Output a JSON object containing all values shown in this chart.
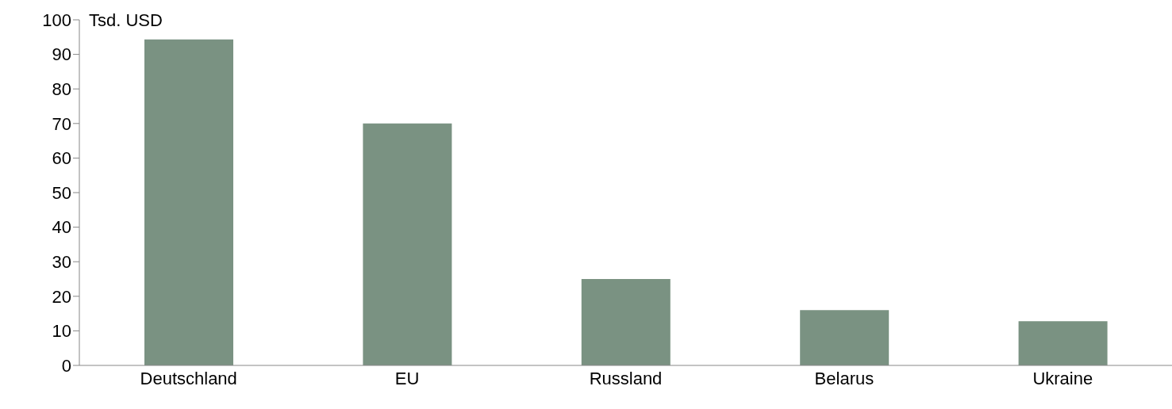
{
  "chart_data": {
    "type": "bar",
    "ylabel": "Tsd. USD",
    "categories": [
      "Deutschland",
      "EU",
      "Russland",
      "Belarus",
      "Ukraine"
    ],
    "values": [
      94.3,
      70,
      25,
      16,
      12.8
    ],
    "color": "#7a9282",
    "ylim": [
      0,
      100
    ],
    "yticks": [
      0,
      10,
      20,
      30,
      40,
      50,
      60,
      70,
      80,
      90,
      100
    ],
    "grid": false,
    "legend": false
  }
}
